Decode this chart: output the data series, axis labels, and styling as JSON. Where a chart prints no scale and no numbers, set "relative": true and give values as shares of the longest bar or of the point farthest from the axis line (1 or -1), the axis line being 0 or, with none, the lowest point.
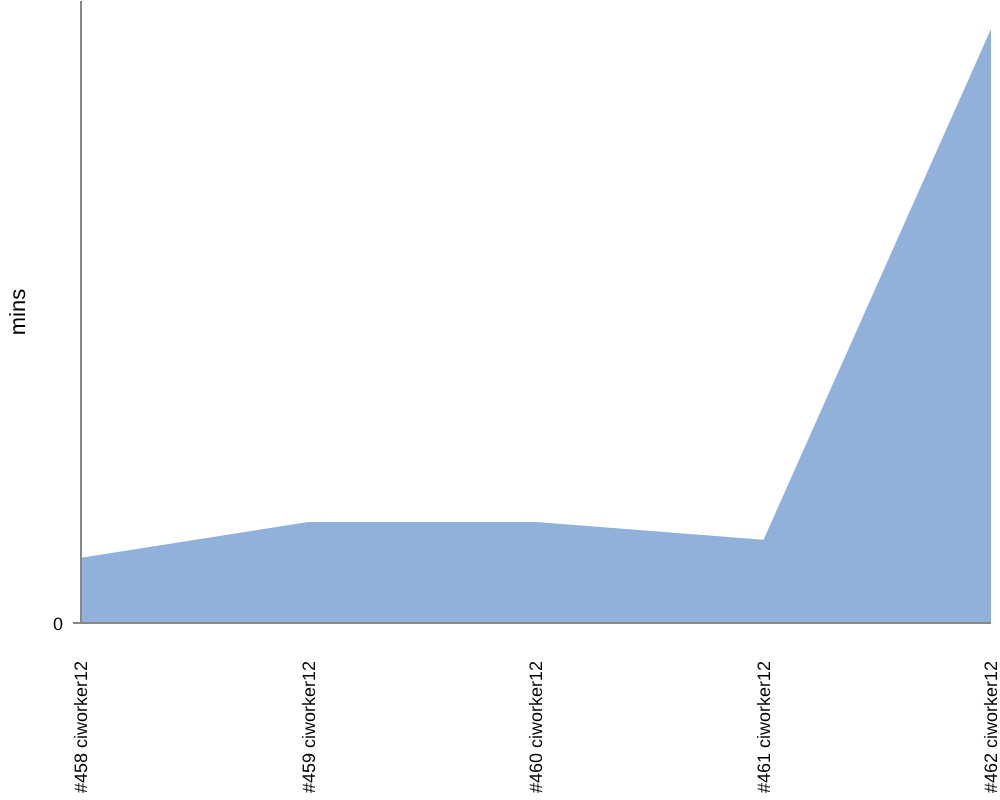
{
  "chart_data": {
    "type": "area",
    "ylabel": "mins",
    "categories": [
      "#458 ciworker12",
      "#459 ciworker12",
      "#460 ciworker12",
      "#461 ciworker12",
      "#462 ciworker12"
    ],
    "values": [
      0.11,
      0.17,
      0.17,
      0.14,
      1
    ],
    "color": "#8fb1da",
    "relative": true,
    "annotations": [
      "0"
    ]
  }
}
